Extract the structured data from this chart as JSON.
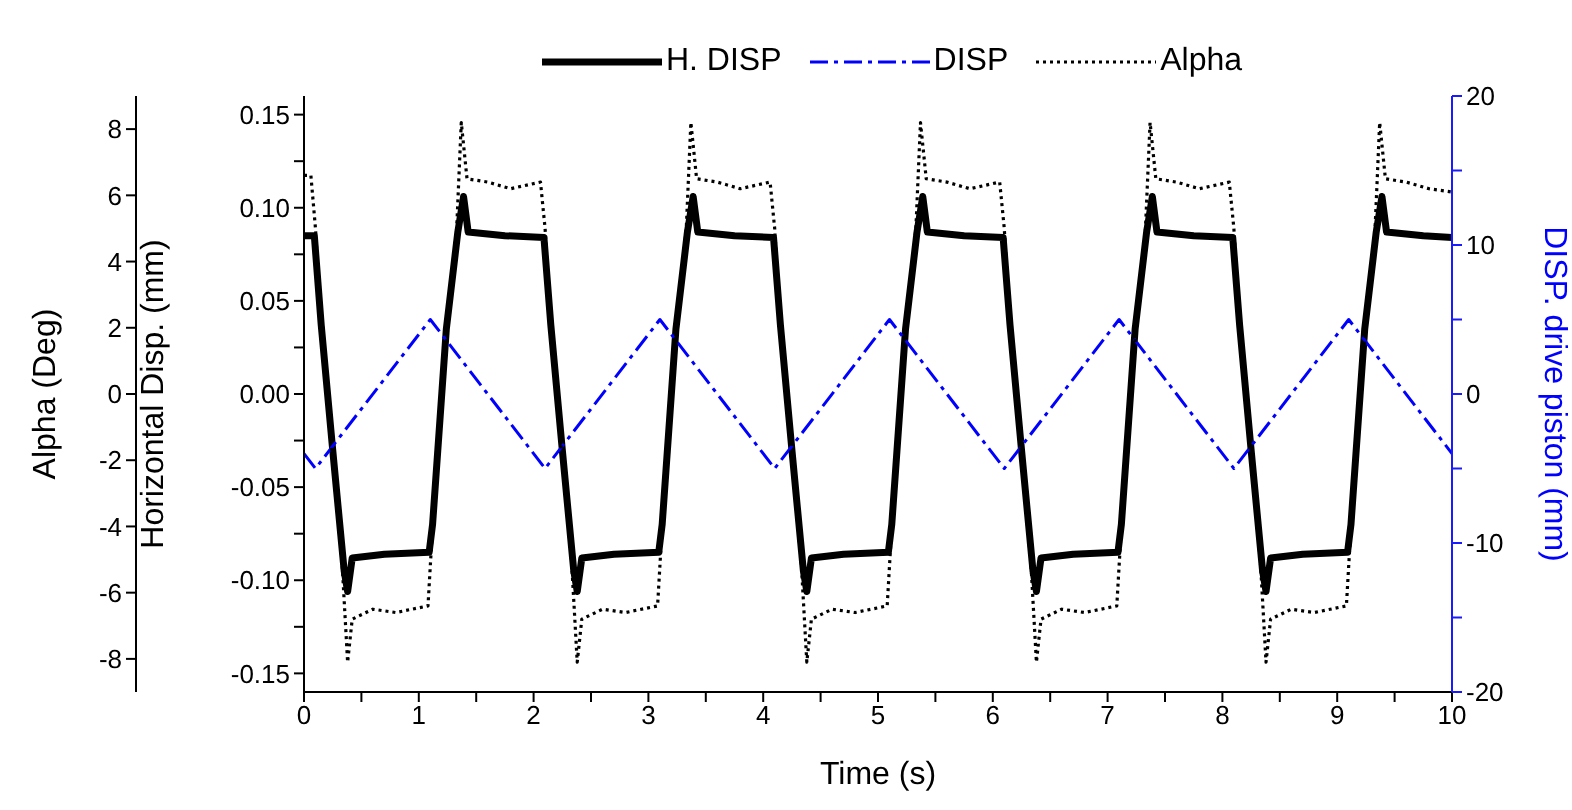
{
  "chart_data": {
    "type": "line",
    "xlabel": "Time (s)",
    "ylabel": "Horizontal Disp. (mm)",
    "y2label": "DISP. drive piston (mm)",
    "y3label": "Alpha (Deg)",
    "xlim": [
      0,
      10
    ],
    "xticks": [
      0,
      {
        "value": 0.5,
        "label": null
      },
      1,
      {
        "value": 1.5,
        "label": null
      },
      2,
      {
        "value": 2.5,
        "label": null
      },
      3,
      {
        "value": 3.5,
        "label": null
      },
      4,
      {
        "value": 4.5,
        "label": null
      },
      5,
      {
        "value": 5.5,
        "label": null
      },
      6,
      {
        "value": 6.5,
        "label": null
      },
      7,
      {
        "value": 7.5,
        "label": null
      },
      8,
      {
        "value": 8.5,
        "label": null
      },
      9,
      {
        "value": 9.5,
        "label": null
      },
      10
    ],
    "ylim": [
      -0.16,
      0.16
    ],
    "yticks": [
      -0.15,
      {
        "value": -0.125,
        "label": null
      },
      {
        "value": -0.1,
        "label": "-0.10"
      },
      {
        "value": -0.075,
        "label": null
      },
      -0.05,
      {
        "value": -0.025,
        "label": null
      },
      {
        "value": 0,
        "label": "0.00"
      },
      {
        "value": 0.025,
        "label": null
      },
      0.05,
      {
        "value": 0.075,
        "label": null
      },
      {
        "value": 0.1,
        "label": "0.10"
      },
      {
        "value": 0.125,
        "label": null
      },
      0.15
    ],
    "y2lim": [
      -20,
      20
    ],
    "y2ticks": [
      -20,
      {
        "value": -15,
        "label": null
      },
      -10,
      {
        "value": -5,
        "label": null
      },
      0,
      {
        "value": 5,
        "label": null
      },
      10,
      {
        "value": 15,
        "label": null
      },
      20
    ],
    "y3lim": [
      -9,
      9
    ],
    "y3ticks": [
      -8,
      -6,
      -4,
      -2,
      0,
      2,
      4,
      6,
      8
    ],
    "grid": false,
    "legend": "top",
    "marker": "none",
    "series": [
      {
        "name": "H. DISP",
        "color": "#000000",
        "line_style": "solid",
        "x": [
          0,
          0.09,
          0.15,
          0.25,
          0.35,
          0.38,
          0.42,
          0.7,
          1.09,
          1.12,
          1.24,
          1.34,
          1.39,
          1.43,
          1.75,
          2.09,
          2.15,
          2.25,
          2.35,
          2.38,
          2.42,
          2.7,
          3.09,
          3.12,
          3.24,
          3.34,
          3.39,
          3.43,
          3.75,
          4.09,
          4.15,
          4.25,
          4.35,
          4.38,
          4.42,
          4.7,
          5.09,
          5.12,
          5.24,
          5.34,
          5.39,
          5.43,
          5.75,
          6.09,
          6.15,
          6.25,
          6.35,
          6.38,
          6.42,
          6.7,
          7.09,
          7.12,
          7.24,
          7.34,
          7.39,
          7.43,
          7.75,
          8.09,
          8.15,
          8.25,
          8.35,
          8.38,
          8.42,
          8.7,
          9.09,
          9.12,
          9.24,
          9.34,
          9.39,
          9.43,
          9.75,
          10
        ],
        "values": [
          0.085,
          0.085,
          0.037,
          -0.03,
          -0.095,
          -0.106,
          -0.088,
          -0.086,
          -0.085,
          -0.07,
          0.035,
          0.087,
          0.106,
          0.087,
          0.085,
          0.084,
          0.037,
          -0.03,
          -0.095,
          -0.106,
          -0.088,
          -0.086,
          -0.085,
          -0.07,
          0.035,
          0.087,
          0.106,
          0.087,
          0.085,
          0.084,
          0.037,
          -0.03,
          -0.095,
          -0.106,
          -0.088,
          -0.086,
          -0.085,
          -0.07,
          0.035,
          0.087,
          0.106,
          0.087,
          0.085,
          0.084,
          0.037,
          -0.03,
          -0.095,
          -0.106,
          -0.088,
          -0.086,
          -0.085,
          -0.07,
          0.035,
          0.087,
          0.106,
          0.087,
          0.085,
          0.084,
          0.037,
          -0.03,
          -0.095,
          -0.106,
          -0.088,
          -0.086,
          -0.085,
          -0.07,
          0.035,
          0.087,
          0.106,
          0.087,
          0.085,
          0.084
        ]
      },
      {
        "name": "DISP",
        "color": "#0000ff",
        "line_style": "dashdot",
        "axis": "y2",
        "x": [
          0,
          0.1,
          1.1,
          2.1,
          3.1,
          4.1,
          5.1,
          6.1,
          7.1,
          8.1,
          9.1,
          10
        ],
        "values": [
          -4,
          -5,
          5,
          -5,
          5,
          -5,
          5,
          -5,
          5,
          -5,
          5,
          -4
        ]
      },
      {
        "name": "Alpha",
        "color": "#000000",
        "line_style": "dotted",
        "axis": "y3",
        "x": [
          0,
          0.06,
          0.1,
          0.15,
          0.25,
          0.33,
          0.38,
          0.42,
          0.6,
          0.8,
          1.08,
          1.12,
          1.25,
          1.33,
          1.37,
          1.42,
          1.6,
          1.8,
          2.06,
          2.1,
          2.15,
          2.25,
          2.33,
          2.38,
          2.42,
          2.6,
          2.8,
          3.08,
          3.12,
          3.25,
          3.33,
          3.37,
          3.42,
          3.6,
          3.8,
          4.06,
          4.1,
          4.15,
          4.25,
          4.33,
          4.38,
          4.42,
          4.6,
          4.8,
          5.08,
          5.12,
          5.25,
          5.33,
          5.37,
          5.42,
          5.6,
          5.8,
          6.06,
          6.1,
          6.15,
          6.25,
          6.33,
          6.38,
          6.42,
          6.6,
          6.8,
          7.08,
          7.12,
          7.25,
          7.33,
          7.37,
          7.42,
          7.6,
          7.8,
          8.06,
          8.1,
          8.15,
          8.25,
          8.33,
          8.38,
          8.42,
          8.6,
          8.8,
          9.08,
          9.12,
          9.25,
          9.33,
          9.37,
          9.42,
          9.6,
          9.8,
          10
        ],
        "values": [
          6.6,
          6.6,
          5,
          2,
          -2,
          -5,
          -8.1,
          -6.8,
          -6.5,
          -6.6,
          -6.4,
          -4,
          2,
          5,
          8.2,
          6.5,
          6.4,
          6.2,
          6.4,
          5,
          2,
          -2,
          -5,
          -8.1,
          -6.8,
          -6.5,
          -6.6,
          -6.4,
          -4,
          2,
          5,
          8.2,
          6.5,
          6.4,
          6.2,
          6.4,
          5,
          2,
          -2,
          -5,
          -8.1,
          -6.8,
          -6.5,
          -6.6,
          -6.4,
          -4,
          2,
          5,
          8.2,
          6.5,
          6.4,
          6.2,
          6.4,
          5,
          2,
          -2,
          -5,
          -8.1,
          -6.8,
          -6.5,
          -6.6,
          -6.4,
          -4,
          2,
          5,
          8.2,
          6.5,
          6.4,
          6.2,
          6.4,
          5,
          2,
          -2,
          -5,
          -8.1,
          -6.8,
          -6.5,
          -6.6,
          -6.4,
          -4,
          2,
          5,
          8.2,
          6.5,
          6.4,
          6.2,
          6.1
        ]
      }
    ]
  }
}
